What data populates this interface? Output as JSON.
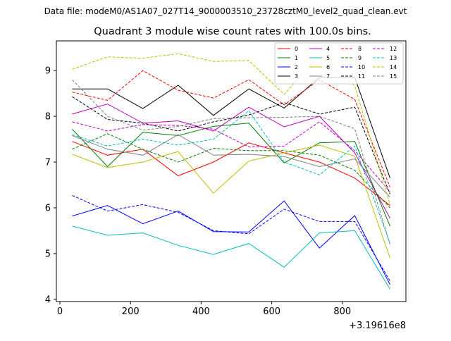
{
  "chart_data": {
    "type": "line",
    "suptitle": "Data file: modeM0/AS1A07_027T14_9000003510_23728cztM0_level2_quad_clean.evt",
    "title": "Quadrant 3 module wise count rates with 100.0s bins.",
    "xlabel": "",
    "ylabel": "",
    "offset_label": "+3.19616e8",
    "xlim": [
      -10,
      980
    ],
    "ylim": [
      3.95,
      9.65
    ],
    "xticks": [
      0,
      200,
      400,
      600,
      800
    ],
    "yticks": [
      4,
      5,
      6,
      7,
      8,
      9
    ],
    "grid": false,
    "legend_position": "top-right",
    "x": [
      35,
      135,
      235,
      335,
      435,
      535,
      635,
      735,
      835,
      935
    ],
    "series": [
      {
        "name": "0",
        "color": "#ff0000",
        "dash": "solid",
        "values": [
          7.45,
          7.15,
          7.28,
          6.7,
          7.0,
          7.42,
          7.2,
          7.0,
          6.65,
          6.05
        ]
      },
      {
        "name": "1",
        "color": "#008000",
        "dash": "solid",
        "values": [
          7.72,
          6.9,
          7.65,
          7.58,
          7.78,
          7.85,
          6.98,
          7.42,
          7.45,
          5.6
        ]
      },
      {
        "name": "2",
        "color": "#0000ff",
        "dash": "solid",
        "values": [
          5.82,
          6.05,
          5.65,
          5.93,
          5.48,
          5.47,
          6.15,
          5.12,
          5.83,
          4.32
        ]
      },
      {
        "name": "3",
        "color": "#000000",
        "dash": "solid",
        "values": [
          8.6,
          8.6,
          8.17,
          8.68,
          8.02,
          8.6,
          8.18,
          8.85,
          8.85,
          6.65
        ]
      },
      {
        "name": "4",
        "color": "#bf00bf",
        "dash": "solid",
        "values": [
          8.05,
          8.27,
          7.85,
          7.9,
          7.68,
          8.2,
          7.77,
          8.0,
          7.2,
          5.77
        ]
      },
      {
        "name": "5",
        "color": "#00bfbf",
        "dash": "solid",
        "values": [
          5.6,
          5.4,
          5.45,
          5.18,
          4.98,
          5.22,
          4.7,
          5.45,
          5.5,
          4.22
        ]
      },
      {
        "name": "6",
        "color": "#bfbf00",
        "dash": "solid",
        "values": [
          7.17,
          6.88,
          7.0,
          7.23,
          6.32,
          7.02,
          7.2,
          7.37,
          7.13,
          4.9
        ]
      },
      {
        "name": "7",
        "color": "#808080",
        "dash": "solid",
        "values": [
          7.58,
          7.28,
          7.15,
          7.6,
          7.15,
          7.17,
          7.12,
          6.9,
          7.07,
          6.23
        ]
      },
      {
        "name": "8",
        "color": "#ff0000",
        "dash": "dashed",
        "values": [
          8.53,
          8.35,
          9.0,
          8.57,
          8.4,
          8.8,
          8.25,
          8.8,
          8.37,
          6.45
        ]
      },
      {
        "name": "9",
        "color": "#008000",
        "dash": "dashed",
        "values": [
          7.28,
          7.62,
          7.28,
          7.0,
          7.3,
          7.25,
          7.25,
          7.15,
          6.82,
          6.0
        ]
      },
      {
        "name": "10",
        "color": "#0000ff",
        "dash": "dashed",
        "values": [
          6.27,
          5.93,
          6.07,
          5.9,
          5.5,
          5.43,
          5.97,
          5.7,
          5.7,
          4.4
        ]
      },
      {
        "name": "11",
        "color": "#000000",
        "dash": "dashed",
        "values": [
          8.43,
          7.93,
          7.85,
          7.68,
          7.88,
          8.03,
          8.3,
          8.05,
          8.2,
          6.3
        ]
      },
      {
        "name": "12",
        "color": "#bf00bf",
        "dash": "dashed",
        "values": [
          7.88,
          7.68,
          7.82,
          7.8,
          7.72,
          7.33,
          7.35,
          7.88,
          7.25,
          6.35
        ]
      },
      {
        "name": "13",
        "color": "#00bfbf",
        "dash": "dashed",
        "values": [
          7.6,
          7.35,
          7.5,
          7.37,
          7.5,
          8.12,
          7.0,
          6.72,
          7.35,
          5.22
        ]
      },
      {
        "name": "14",
        "color": "#bfbf00",
        "dash": "dashed",
        "values": [
          9.03,
          9.3,
          9.27,
          9.37,
          9.2,
          9.22,
          8.48,
          9.35,
          8.67,
          6.07
        ]
      },
      {
        "name": "15",
        "color": "#808080",
        "dash": "dashed",
        "values": [
          8.8,
          8.0,
          7.7,
          7.78,
          7.95,
          7.97,
          7.98,
          8.0,
          7.73,
          5.2
        ]
      }
    ]
  }
}
